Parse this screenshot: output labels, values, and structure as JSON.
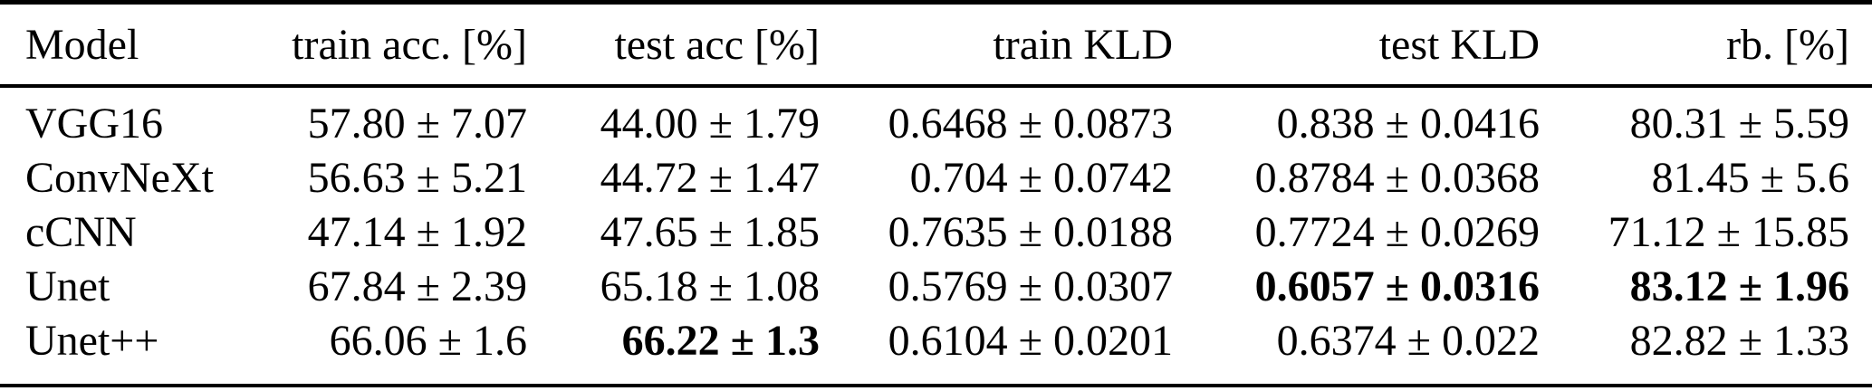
{
  "table": {
    "columns": [
      {
        "label": "Model"
      },
      {
        "label": "train acc. [%]"
      },
      {
        "label": "test acc [%]"
      },
      {
        "label": "train KLD"
      },
      {
        "label": "test KLD"
      },
      {
        "label": "rb. [%]"
      }
    ],
    "rows": [
      {
        "model": "VGG16",
        "cells": [
          "57.80 ± 7.07",
          "44.00 ± 1.79",
          "0.6468 ± 0.0873",
          "0.838 ± 0.0416",
          "80.31 ± 5.59"
        ],
        "bold": []
      },
      {
        "model": "ConvNeXt",
        "cells": [
          "56.63 ± 5.21",
          "44.72 ± 1.47",
          "0.704 ± 0.0742",
          "0.8784 ± 0.0368",
          "81.45 ± 5.6"
        ],
        "bold": []
      },
      {
        "model": "cCNN",
        "cells": [
          "47.14 ± 1.92",
          "47.65 ± 1.85",
          "0.7635 ± 0.0188",
          "0.7724 ± 0.0269",
          "71.12 ± 15.85"
        ],
        "bold": []
      },
      {
        "model": "Unet",
        "cells": [
          "67.84 ± 2.39",
          "65.18 ± 1.08",
          "0.5769 ± 0.0307",
          "0.6057 ± 0.0316",
          "83.12 ± 1.96"
        ],
        "bold": [
          3,
          4
        ]
      },
      {
        "model": "Unet++",
        "cells": [
          "66.06 ± 1.6",
          "66.22 ± 1.3",
          "0.6104 ± 0.0201",
          "0.6374 ± 0.022",
          "82.82 ± 1.33"
        ],
        "bold": [
          1
        ]
      }
    ],
    "colors": {
      "text": "#000000",
      "background": "#ffffff",
      "rule": "#000000"
    }
  },
  "chart_data": {
    "type": "table",
    "title": "",
    "columns": [
      "Model",
      "train acc. [%]",
      "test acc [%]",
      "train KLD",
      "test KLD",
      "rb. [%]"
    ],
    "rows": [
      [
        "VGG16",
        "57.80 ± 7.07",
        "44.00 ± 1.79",
        "0.6468 ± 0.0873",
        "0.838 ± 0.0416",
        "80.31 ± 5.59"
      ],
      [
        "ConvNeXt",
        "56.63 ± 5.21",
        "44.72 ± 1.47",
        "0.704 ± 0.0742",
        "0.8784 ± 0.0368",
        "81.45 ± 5.6"
      ],
      [
        "cCNN",
        "47.14 ± 1.92",
        "47.65 ± 1.85",
        "0.7635 ± 0.0188",
        "0.7724 ± 0.0269",
        "71.12 ± 15.85"
      ],
      [
        "Unet",
        "67.84 ± 2.39",
        "65.18 ± 1.08",
        "0.5769 ± 0.0307",
        "0.6057 ± 0.0316",
        "83.12 ± 1.96"
      ],
      [
        "Unet++",
        "66.06 ± 1.6",
        "66.22 ± 1.3",
        "0.6104 ± 0.0201",
        "0.6374 ± 0.022",
        "82.82 ± 1.33"
      ]
    ],
    "bold_cells": [
      {
        "row": "Unet",
        "column": "test KLD",
        "value": "0.6057 ± 0.0316"
      },
      {
        "row": "Unet",
        "column": "rb. [%]",
        "value": "83.12 ± 1.96"
      },
      {
        "row": "Unet++",
        "column": "test acc [%]",
        "value": "66.22 ± 1.3"
      }
    ]
  }
}
